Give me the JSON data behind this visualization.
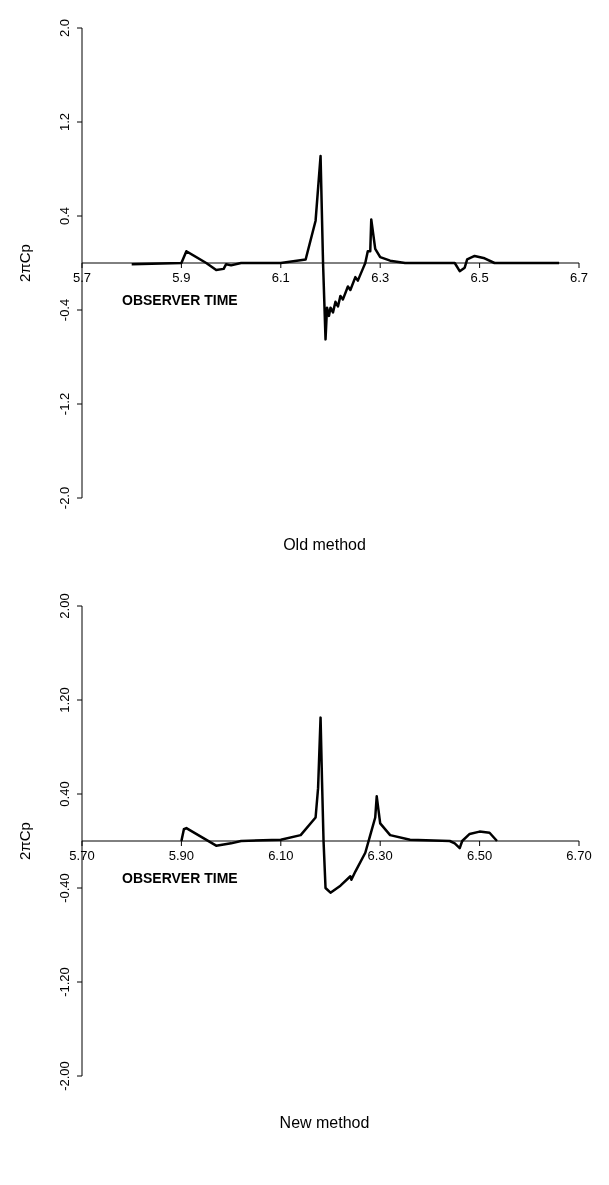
{
  "chart_data": [
    {
      "type": "line",
      "title": "Old method",
      "xlabel": "OBSERVER TIME",
      "ylabel": "2πCp",
      "x": [
        5.8,
        5.9,
        5.91,
        5.95,
        5.97,
        5.985,
        5.99,
        6.0,
        6.02,
        6.1,
        6.15,
        6.17,
        6.18,
        6.185,
        6.19,
        6.193,
        6.197,
        6.2,
        6.205,
        6.21,
        6.215,
        6.22,
        6.225,
        6.235,
        6.24,
        6.25,
        6.255,
        6.265,
        6.27,
        6.275,
        6.28,
        6.282,
        6.29,
        6.3,
        6.32,
        6.35,
        6.45,
        6.46,
        6.47,
        6.475,
        6.49,
        6.51,
        6.53,
        6.66
      ],
      "series": [
        {
          "color": "#000000",
          "values": [
            -0.01,
            0.0,
            0.1,
            0.0,
            -0.06,
            -0.05,
            -0.01,
            -0.02,
            0.0,
            0.0,
            0.03,
            0.36,
            0.91,
            0.0,
            -0.65,
            -0.38,
            -0.45,
            -0.38,
            -0.42,
            -0.33,
            -0.37,
            -0.28,
            -0.31,
            -0.2,
            -0.23,
            -0.12,
            -0.15,
            -0.05,
            0.0,
            0.1,
            0.1,
            0.37,
            0.12,
            0.05,
            0.02,
            0.0,
            0.0,
            -0.07,
            -0.04,
            0.03,
            0.06,
            0.04,
            0.0,
            0.0
          ]
        }
      ],
      "xlim": [
        5.7,
        6.7
      ],
      "xticks": [
        5.7,
        5.9,
        6.1,
        6.3,
        6.5,
        6.7
      ],
      "ylim": [
        -2,
        2
      ],
      "yticks": [
        {
          "value": -2,
          "label": "-2.0"
        },
        -1.2,
        -0.4,
        0.4,
        1.2,
        {
          "value": 2,
          "label": "2.0"
        }
      ],
      "grid": false,
      "marker": "none"
    },
    {
      "type": "line",
      "title": "New method",
      "xlabel": "OBSERVER TIME",
      "ylabel": "2πCp",
      "x": [
        5.9,
        5.905,
        5.91,
        5.97,
        6.0,
        6.02,
        6.1,
        6.14,
        6.17,
        6.175,
        6.18,
        6.183,
        6.186,
        6.19,
        6.2,
        6.22,
        6.24,
        6.242,
        6.25,
        6.27,
        6.28,
        6.29,
        6.293,
        6.3,
        6.32,
        6.36,
        6.44,
        6.45,
        6.46,
        6.465,
        6.48,
        6.5,
        6.52,
        6.535
      ],
      "series": [
        {
          "color": "#000000",
          "values": [
            0.0,
            0.1,
            0.11,
            -0.04,
            -0.02,
            0.0,
            0.01,
            0.05,
            0.2,
            0.45,
            1.05,
            0.5,
            0.0,
            -0.4,
            -0.44,
            -0.38,
            -0.3,
            -0.33,
            -0.26,
            -0.1,
            0.05,
            0.2,
            0.38,
            0.15,
            0.05,
            0.01,
            0.0,
            -0.02,
            -0.06,
            0.0,
            0.06,
            0.08,
            0.07,
            0.0
          ]
        }
      ],
      "xlim": [
        5.7,
        6.7
      ],
      "xticks": [
        {
          "value": 5.7,
          "label": "5.70"
        },
        {
          "value": 5.9,
          "label": "5.90"
        },
        {
          "value": 6.1,
          "label": "6.10"
        },
        {
          "value": 6.3,
          "label": "6.30"
        },
        {
          "value": 6.5,
          "label": "6.50"
        },
        {
          "value": 6.7,
          "label": "6.70"
        }
      ],
      "ylim": [
        -2,
        2
      ],
      "yticks": [
        {
          "value": -2,
          "label": "-2.00"
        },
        {
          "value": -1.2,
          "label": "-1.20"
        },
        {
          "value": -0.4,
          "label": "-0.40"
        },
        {
          "value": 0.4,
          "label": "0.40"
        },
        {
          "value": 1.2,
          "label": "1.20"
        },
        {
          "value": 2,
          "label": "2.00"
        }
      ],
      "grid": false,
      "marker": "none"
    }
  ]
}
